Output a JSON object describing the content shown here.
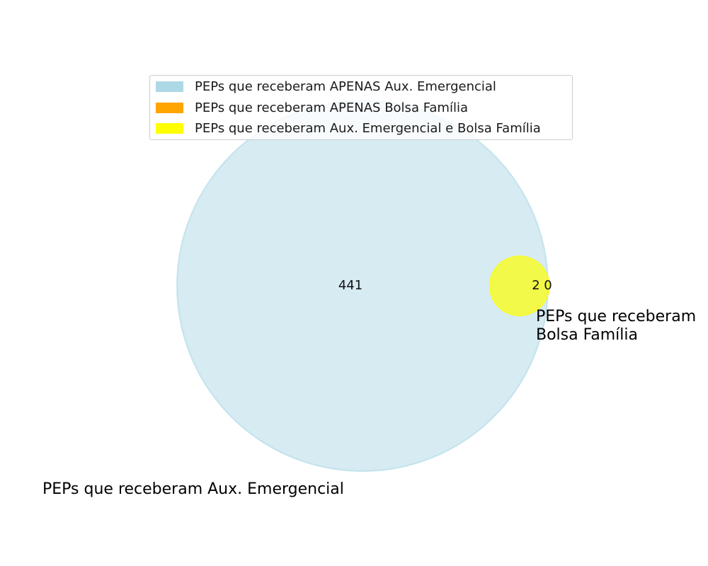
{
  "chart_data": {
    "type": "venn",
    "sets": [
      {
        "name": "PEPs que receberam Aux. Emergencial",
        "color": "#add8e6"
      },
      {
        "name": "PEPs que receberam Bolsa Família",
        "color": "#ffa500"
      }
    ],
    "regions": [
      {
        "id": "only_aux",
        "value": 441,
        "label": "441",
        "color": "#add8e6"
      },
      {
        "id": "both",
        "value": 2,
        "label": "2",
        "color": "#ffff00"
      },
      {
        "id": "only_bolsa",
        "value": 0,
        "label": "0",
        "color": "#ffa500"
      }
    ],
    "set_labels": {
      "aux": "PEPs que receberam Aux. Emergencial",
      "bolsa_line1": "PEPs que receberam",
      "bolsa_line2": "Bolsa Família"
    },
    "legend": [
      {
        "label": "PEPs que receberam APENAS Aux. Emergencial",
        "color": "#add8e6"
      },
      {
        "label": "PEPs que receberam APENAS Bolsa Família",
        "color": "#ffa500"
      },
      {
        "label": "PEPs que receberam Aux. Emergencial e Bolsa Família",
        "color": "#ffff00"
      }
    ],
    "legend_position": "top-center"
  }
}
